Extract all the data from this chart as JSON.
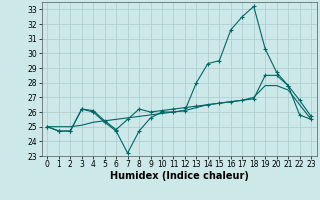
{
  "xlabel": "Humidex (Indice chaleur)",
  "bg_color": "#cce8e8",
  "grid_color": "#aacccc",
  "line_color": "#006666",
  "x_values": [
    0,
    1,
    2,
    3,
    4,
    5,
    6,
    7,
    8,
    9,
    10,
    11,
    12,
    13,
    14,
    15,
    16,
    17,
    18,
    19,
    20,
    21,
    22,
    23
  ],
  "line1": [
    25.0,
    24.7,
    24.7,
    26.2,
    26.0,
    25.3,
    24.7,
    23.2,
    24.7,
    25.6,
    26.0,
    26.0,
    26.1,
    28.0,
    29.3,
    29.5,
    31.6,
    32.5,
    33.2,
    30.3,
    28.7,
    27.8,
    26.8,
    25.7
  ],
  "line2": [
    25.0,
    24.7,
    24.7,
    26.2,
    26.1,
    25.4,
    24.8,
    25.5,
    26.2,
    26.0,
    26.1,
    26.2,
    26.3,
    26.4,
    26.5,
    26.6,
    26.7,
    26.8,
    26.9,
    28.5,
    28.5,
    27.8,
    25.8,
    25.5
  ],
  "line3": [
    25.0,
    25.0,
    25.0,
    25.1,
    25.3,
    25.4,
    25.5,
    25.6,
    25.7,
    25.8,
    25.9,
    26.0,
    26.1,
    26.3,
    26.5,
    26.6,
    26.7,
    26.8,
    27.0,
    27.8,
    27.8,
    27.5,
    26.5,
    25.5
  ],
  "ylim": [
    23,
    33.5
  ],
  "xlim": [
    -0.5,
    23.5
  ],
  "yticks": [
    23,
    24,
    25,
    26,
    27,
    28,
    29,
    30,
    31,
    32,
    33
  ],
  "xticks": [
    0,
    1,
    2,
    3,
    4,
    5,
    6,
    7,
    8,
    9,
    10,
    11,
    12,
    13,
    14,
    15,
    16,
    17,
    18,
    19,
    20,
    21,
    22,
    23
  ],
  "tick_fontsize": 5.5,
  "xlabel_fontsize": 7.0,
  "marker_size": 3,
  "line_width": 0.8
}
